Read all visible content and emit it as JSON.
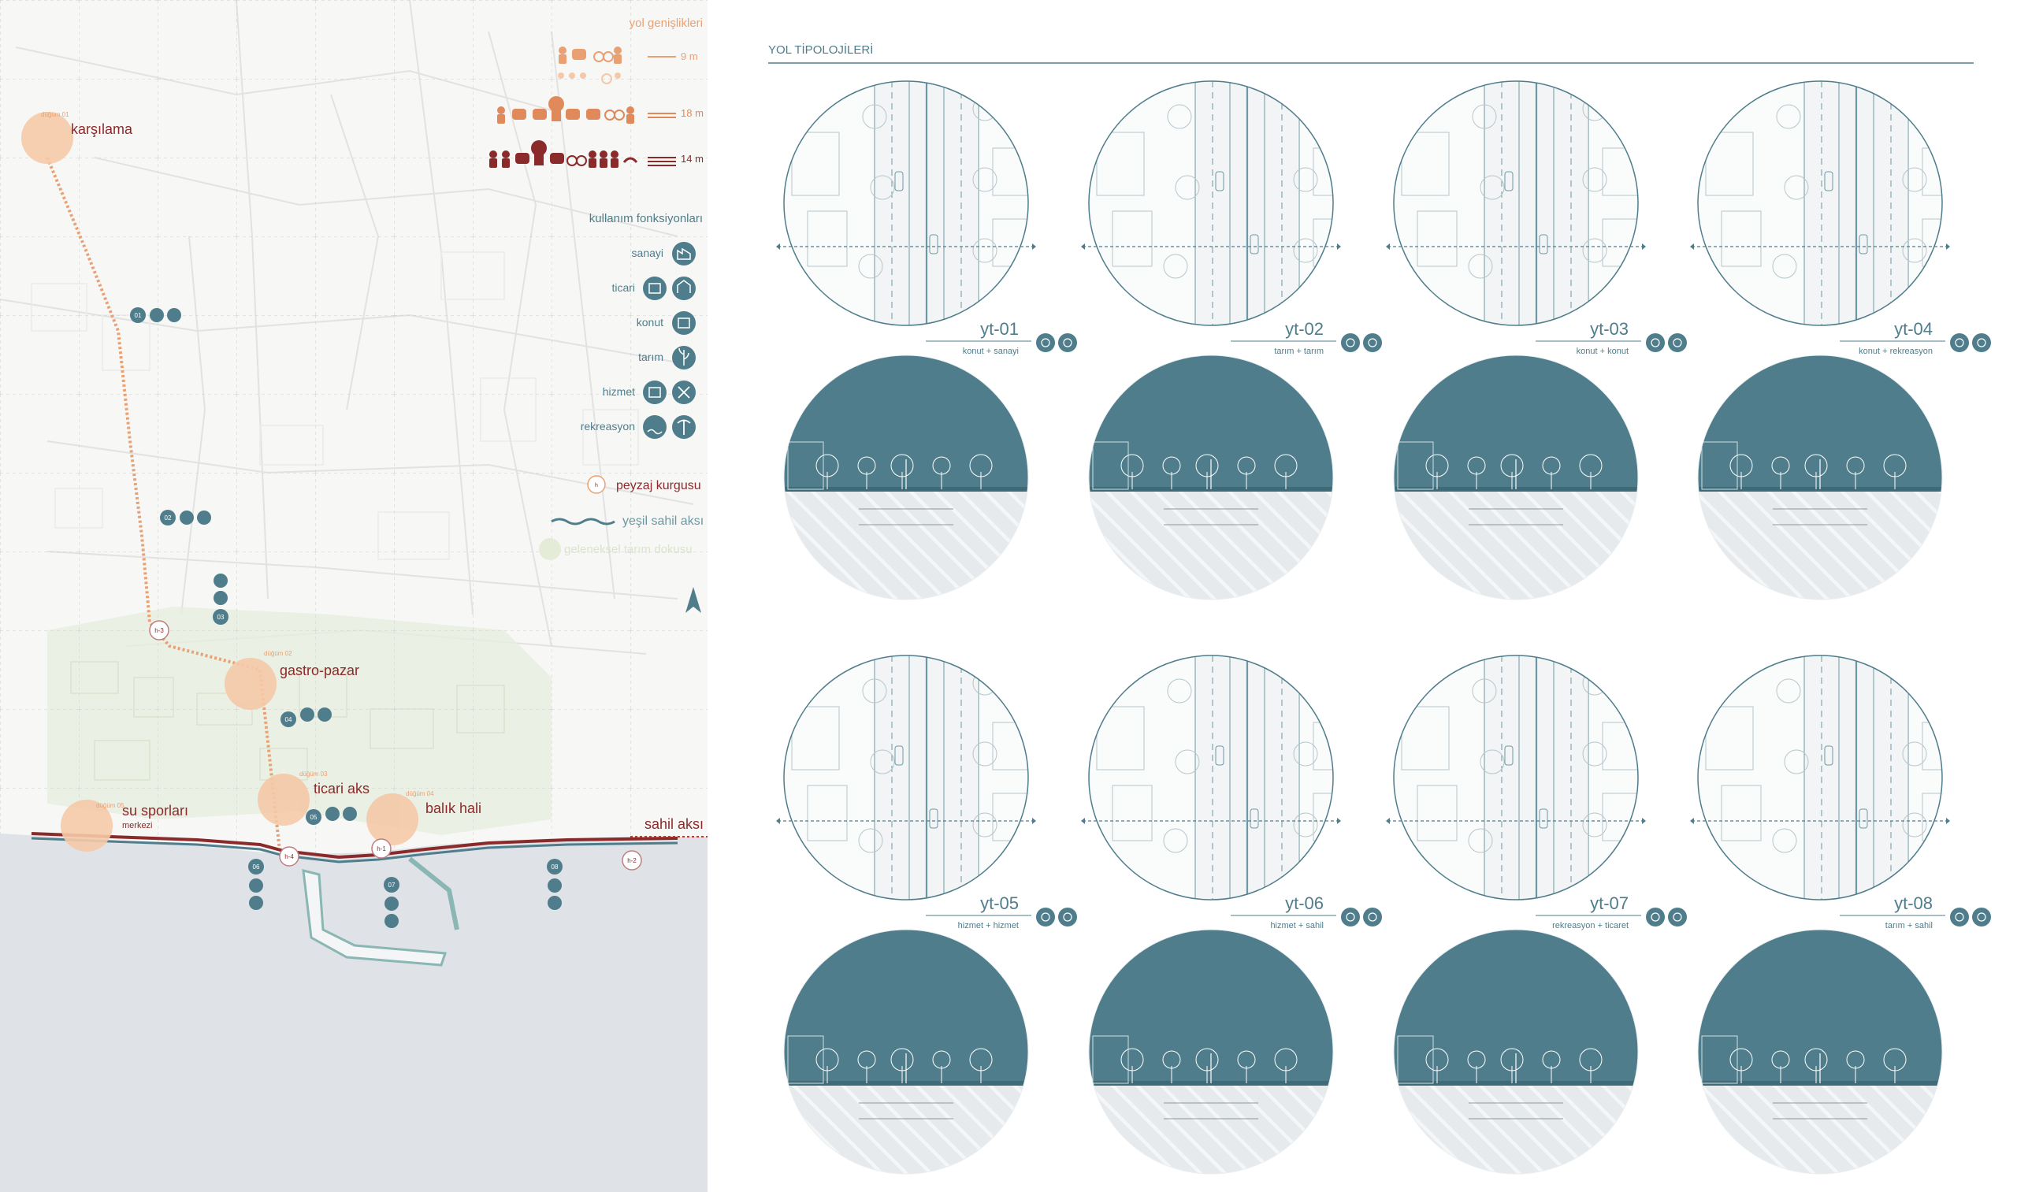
{
  "map": {
    "road_widths_title": "yol genişlikleri",
    "widths": [
      "9 m",
      "18 m",
      "14 m"
    ],
    "functions_title": "kullanım fonksiyonları",
    "functions": [
      "sanayi",
      "ticari",
      "konut",
      "tarım",
      "hizmet",
      "rekreasyon"
    ],
    "landscape_legend": "peyzaj kurgusu",
    "green_axis_legend": "yeşil sahil aksı",
    "traditional_agri_legend": "geleneksel tarım dokusu",
    "hub_marker": "h",
    "places": [
      {
        "id": "karsilama",
        "label": "karşılama",
        "small": "düğüm 01"
      },
      {
        "id": "gastro",
        "label": "gastro-pazar",
        "small": "düğüm 02"
      },
      {
        "id": "ticari",
        "label": "ticari aks",
        "small": "düğüm 03"
      },
      {
        "id": "balik",
        "label": "balık hali",
        "small": "düğüm 04"
      },
      {
        "id": "su",
        "label": "su sporları",
        "sub": "merkezi",
        "small": "düğüm 05"
      }
    ],
    "coast_label": "sahil aksı",
    "node_numbers": [
      "01",
      "02",
      "03",
      "04",
      "05",
      "06",
      "07",
      "08"
    ],
    "hub_codes": [
      "h-3",
      "h-4",
      "h-1",
      "h-2"
    ]
  },
  "typologies": {
    "title": "YOL TİPOLOJİLERİ",
    "items": [
      {
        "code": "yt-01",
        "use": "konut + sanayi",
        "icons": [
          "konut-icon",
          "sanayi-icon"
        ]
      },
      {
        "code": "yt-02",
        "use": "tarım + tarım",
        "icons": [
          "tarim-icon",
          "tarim-icon"
        ]
      },
      {
        "code": "yt-03",
        "use": "konut + konut",
        "icons": [
          "konut-icon",
          "konut-icon"
        ]
      },
      {
        "code": "yt-04",
        "use": "konut + rekreasyon",
        "icons": [
          "konut-icon",
          "rekreasyon-icon"
        ]
      },
      {
        "code": "yt-05",
        "use": "hizmet + hizmet",
        "icons": [
          "hizmet-icon",
          "hizmet-icon"
        ]
      },
      {
        "code": "yt-06",
        "use": "hizmet + sahil",
        "icons": [
          "hizmet-icon",
          "sahil-icon"
        ]
      },
      {
        "code": "yt-07",
        "use": "rekreasyon + ticaret",
        "icons": [
          "rekreasyon-icon",
          "ticaret-icon"
        ]
      },
      {
        "code": "yt-08",
        "use": "tarım + sahil",
        "icons": [
          "tarim-icon",
          "sahil-icon"
        ]
      }
    ]
  },
  "colors": {
    "teal": "#4f7d8b",
    "teal_line": "#6b98a4",
    "orange": "#e9a174",
    "peach": "#f5c9a8",
    "maroon": "#8b2a2a",
    "sea": "#dfe3e7",
    "green_area": "#e4ecd8"
  }
}
